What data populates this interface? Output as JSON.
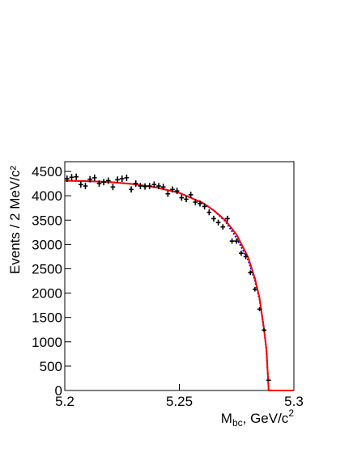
{
  "chart_data": {
    "type": "errorbar",
    "x_label": [
      "M",
      "bc",
      ", GeV/c",
      "2"
    ],
    "y_label": "Events / 2 MeV/c²",
    "xlim": [
      5.2,
      5.3
    ],
    "ylim": [
      0,
      4700
    ],
    "xticks": [
      5.2,
      5.25,
      5.3
    ],
    "yticks": [
      0,
      500,
      1000,
      1500,
      2000,
      2500,
      3000,
      3500,
      4000,
      4500
    ],
    "points": {
      "color": "#000000",
      "x": [
        5.201,
        5.203,
        5.205,
        5.207,
        5.209,
        5.211,
        5.213,
        5.215,
        5.217,
        5.219,
        5.221,
        5.223,
        5.225,
        5.227,
        5.229,
        5.231,
        5.233,
        5.235,
        5.237,
        5.239,
        5.241,
        5.243,
        5.245,
        5.247,
        5.249,
        5.251,
        5.253,
        5.255,
        5.257,
        5.259,
        5.261,
        5.263,
        5.265,
        5.267,
        5.269,
        5.271,
        5.273,
        5.275,
        5.277,
        5.279,
        5.281,
        5.283,
        5.285,
        5.287,
        5.289
      ],
      "values": [
        4350,
        4380,
        4390,
        4230,
        4200,
        4340,
        4370,
        4250,
        4280,
        4310,
        4180,
        4330,
        4350,
        4370,
        4130,
        4250,
        4200,
        4190,
        4200,
        4230,
        4200,
        4180,
        4040,
        4130,
        4100,
        3960,
        3930,
        4020,
        3870,
        3840,
        3780,
        3660,
        3530,
        3450,
        3360,
        3530,
        3070,
        3070,
        2820,
        2750,
        2420,
        2080,
        1670,
        1240,
        210
      ],
      "errors": [
        66,
        66,
        66,
        65,
        65,
        66,
        66,
        65,
        65,
        66,
        65,
        66,
        66,
        66,
        64,
        65,
        65,
        65,
        65,
        65,
        65,
        65,
        64,
        64,
        64,
        63,
        63,
        63,
        62,
        62,
        61,
        60,
        59,
        59,
        58,
        59,
        55,
        55,
        53,
        52,
        49,
        46,
        41,
        35,
        14
      ]
    },
    "fit": {
      "color": "#ff0000",
      "x": [
        5.2,
        5.21,
        5.22,
        5.23,
        5.24,
        5.25,
        5.26,
        5.265,
        5.27,
        5.275,
        5.28,
        5.283,
        5.285,
        5.287,
        5.288,
        5.289,
        5.3
      ],
      "values": [
        4310,
        4300,
        4280,
        4240,
        4170,
        4060,
        3860,
        3700,
        3500,
        3200,
        2740,
        2300,
        1900,
        1250,
        850,
        0,
        0
      ]
    },
    "background": {
      "color": "#0000ff",
      "x": [
        5.2,
        5.21,
        5.22,
        5.23,
        5.24,
        5.25,
        5.26,
        5.265,
        5.27,
        5.275,
        5.28,
        5.283,
        5.285,
        5.287,
        5.288,
        5.289
      ],
      "values": [
        4310,
        4300,
        4280,
        4240,
        4170,
        4060,
        3860,
        3700,
        3480,
        3130,
        2680,
        2260,
        1870,
        1230,
        840,
        0
      ]
    }
  }
}
